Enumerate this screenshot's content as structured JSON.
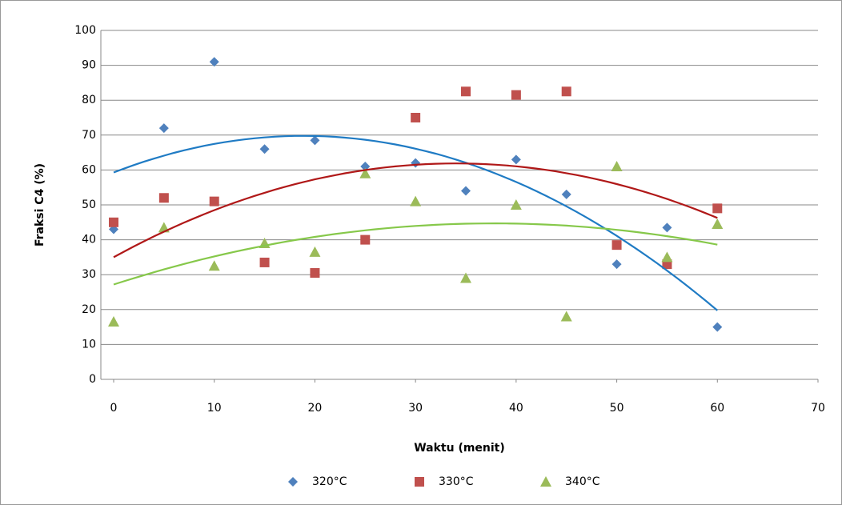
{
  "chart_data": {
    "type": "scatter",
    "x_label": "Waktu (menit)",
    "y_label": "Fraksi C4 (%)",
    "x": [
      0,
      5,
      10,
      15,
      20,
      25,
      30,
      35,
      40,
      45,
      50,
      55,
      60
    ],
    "series": [
      {
        "name": "320°C",
        "color": "#4f81bd",
        "marker": "diamond",
        "trend_color": "#1f7bc4",
        "values": [
          43,
          72,
          91,
          66,
          68.5,
          61,
          62,
          54,
          63,
          53,
          33,
          43.5,
          15
        ]
      },
      {
        "name": "330°C",
        "color": "#c0504d",
        "marker": "square",
        "trend_color": "#b01818",
        "values": [
          45,
          52,
          51,
          33.5,
          30.5,
          40,
          75,
          82.5,
          81.5,
          82.5,
          38.5,
          33,
          49
        ]
      },
      {
        "name": "340°C",
        "color": "#9bbb59",
        "marker": "triangle",
        "trend_color": "#86c84a",
        "values": [
          16.5,
          43.5,
          32.5,
          39,
          36.5,
          59,
          51,
          29,
          50,
          18,
          61,
          35,
          44.5
        ]
      }
    ],
    "trendline": "polynomial-2",
    "xlim": [
      0,
      70
    ],
    "xticks": [
      0,
      10,
      20,
      30,
      40,
      50,
      60,
      70
    ],
    "ylim": [
      0,
      100
    ],
    "yticks": [
      0,
      10,
      20,
      30,
      40,
      50,
      60,
      70,
      80,
      90,
      100
    ],
    "grid": true,
    "legend": "bottom"
  }
}
